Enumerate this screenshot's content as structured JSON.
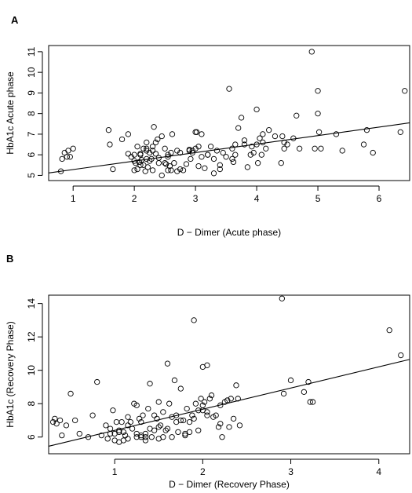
{
  "panels": [
    {
      "letter": "A"
    },
    {
      "letter": "B"
    }
  ],
  "chart_data": [
    {
      "type": "scatter",
      "title": "",
      "xlabel": "D − Dimer (Acute phase)",
      "ylabel": "HbA1c Acute phase",
      "xlim": [
        0.6,
        6.5
      ],
      "ylim": [
        4.75,
        11.3
      ],
      "xticks": [
        1,
        2,
        3,
        4,
        5,
        6
      ],
      "yticks": [
        5,
        6,
        7,
        8,
        9,
        10,
        11
      ],
      "grid": false,
      "fit_line": {
        "x": [
          0.6,
          6.5
        ],
        "y": [
          5.12,
          7.55
        ]
      },
      "x": [
        0.8,
        0.82,
        0.86,
        0.9,
        0.92,
        0.95,
        1.0,
        1.58,
        1.6,
        1.65,
        1.8,
        1.9,
        1.95,
        2.0,
        2.02,
        2.05,
        2.08,
        2.1,
        2.12,
        2.15,
        2.18,
        2.2,
        2.22,
        2.25,
        2.28,
        2.3,
        2.05,
        2.1,
        2.15,
        2.2,
        2.25,
        2.3,
        2.32,
        2.35,
        2.38,
        2.4,
        2.45,
        2.5,
        2.52,
        2.55,
        2.58,
        2.6,
        2.62,
        2.65,
        2.7,
        2.75,
        2.8,
        2.85,
        2.9,
        2.92,
        2.95,
        3.0,
        3.02,
        3.05,
        2.5,
        2.55,
        2.6,
        3.1,
        3.15,
        3.2,
        3.25,
        3.3,
        3.35,
        3.4,
        3.45,
        3.5,
        3.55,
        3.6,
        3.62,
        3.65,
        3.7,
        3.75,
        3.8,
        3.85,
        3.9,
        3.92,
        3.95,
        4.0,
        4.02,
        4.05,
        4.08,
        4.1,
        4.15,
        4.2,
        4.4,
        4.42,
        4.45,
        4.5,
        4.6,
        4.65,
        4.7,
        4.9,
        4.95,
        5.0,
        5.0,
        5.02,
        5.05,
        5.3,
        5.4,
        5.75,
        5.8,
        5.9,
        6.35,
        6.42,
        2.3,
        2.45,
        2.7,
        2.9,
        3.0,
        3.1,
        3.2,
        3.6,
        3.65,
        3.8,
        4.0,
        4.1,
        4.3,
        4.45,
        2.0,
        2.1,
        2.2,
        2.4,
        2.55,
        2.75,
        2.95,
        3.05,
        3.3,
        3.4,
        1.9,
        2.0,
        2.2,
        2.35
      ],
      "y": [
        5.2,
        5.8,
        6.1,
        5.9,
        6.2,
        5.9,
        6.3,
        7.2,
        6.5,
        5.3,
        6.75,
        6.05,
        5.9,
        5.25,
        5.6,
        5.3,
        5.65,
        6.05,
        5.75,
        6.3,
        5.2,
        6.6,
        5.4,
        6.1,
        5.8,
        6.2,
        6.4,
        6.0,
        5.5,
        6.3,
        5.7,
        5.25,
        7.35,
        6.05,
        6.75,
        5.85,
        6.9,
        6.3,
        5.55,
        5.25,
        5.45,
        6.1,
        7.0,
        5.6,
        6.2,
        5.3,
        5.25,
        5.55,
        6.25,
        5.8,
        6.1,
        6.3,
        7.1,
        5.45,
        5.6,
        6.0,
        5.25,
        7.0,
        5.35,
        6.0,
        6.4,
        5.8,
        6.2,
        5.5,
        6.1,
        5.9,
        9.2,
        6.3,
        5.65,
        6.0,
        7.3,
        7.8,
        6.5,
        5.4,
        6.0,
        6.4,
        6.1,
        6.5,
        5.6,
        6.8,
        6.0,
        7.0,
        6.3,
        7.2,
        5.6,
        6.9,
        6.3,
        6.5,
        6.8,
        7.9,
        6.3,
        11.0,
        6.3,
        8.0,
        9.1,
        7.1,
        6.3,
        7.0,
        6.2,
        6.5,
        7.2,
        6.1,
        7.1,
        9.1,
        6.4,
        5.0,
        5.2,
        6.2,
        7.1,
        5.9,
        6.0,
        5.8,
        6.5,
        6.7,
        8.2,
        6.6,
        6.9,
        6.6,
        5.7,
        5.5,
        6.2,
        5.6,
        5.9,
        6.1,
        6.2,
        6.4,
        5.1,
        5.3,
        7.0,
        6.0,
        5.8,
        6.6
      ],
      "marker": "open-circle"
    },
    {
      "type": "scatter",
      "title": "",
      "xlabel": "D − Dimer (Recovery Phase)",
      "ylabel": "HbA1c (Recovery Phase)",
      "xlim": [
        0.25,
        4.35
      ],
      "ylim": [
        5.0,
        14.5
      ],
      "xticks": [
        1,
        2,
        3,
        4
      ],
      "yticks": [
        6,
        8,
        10,
        12,
        14
      ],
      "grid": false,
      "fit_line": {
        "x": [
          0.25,
          4.35
        ],
        "y": [
          5.45,
          10.65
        ]
      },
      "x": [
        0.3,
        0.32,
        0.34,
        0.38,
        0.4,
        0.45,
        0.5,
        0.55,
        0.6,
        0.7,
        0.75,
        0.8,
        0.85,
        0.9,
        0.92,
        0.95,
        0.98,
        1.0,
        1.0,
        1.02,
        1.05,
        1.05,
        1.08,
        1.1,
        1.12,
        1.15,
        1.15,
        1.18,
        1.2,
        1.22,
        1.25,
        1.25,
        1.28,
        1.3,
        1.3,
        1.32,
        1.35,
        1.35,
        1.38,
        1.4,
        1.4,
        1.42,
        1.45,
        1.45,
        1.48,
        1.5,
        1.5,
        1.52,
        1.55,
        1.55,
        1.58,
        1.6,
        1.62,
        1.65,
        1.65,
        1.68,
        1.7,
        1.72,
        1.75,
        1.78,
        1.8,
        1.8,
        1.82,
        1.85,
        1.88,
        1.9,
        1.92,
        1.95,
        1.98,
        2.0,
        2.0,
        2.02,
        2.05,
        2.05,
        2.08,
        2.1,
        2.12,
        2.15,
        2.18,
        2.2,
        2.22,
        2.25,
        2.28,
        2.3,
        2.32,
        2.35,
        2.38,
        2.4,
        2.42,
        2.9,
        2.92,
        3.0,
        3.15,
        3.2,
        3.22,
        3.25,
        4.12,
        4.25,
        1.1,
        1.3,
        1.5,
        1.7,
        1.9,
        2.0,
        2.2,
        1.35,
        1.25,
        1.15,
        1.05,
        1.6,
        1.75,
        1.85,
        1.95,
        2.05,
        0.95
      ],
      "y": [
        6.9,
        7.1,
        6.8,
        7.0,
        6.1,
        6.7,
        8.6,
        7.0,
        6.2,
        6.0,
        7.3,
        9.3,
        6.1,
        6.7,
        5.9,
        6.5,
        7.6,
        5.8,
        6.2,
        6.9,
        5.7,
        6.3,
        6.9,
        5.8,
        6.1,
        7.2,
        5.9,
        6.9,
        6.5,
        8.0,
        6.2,
        7.9,
        7.1,
        6.0,
        6.9,
        7.3,
        6.2,
        6.0,
        7.7,
        6.5,
        9.2,
        6.0,
        6.4,
        7.3,
        7.1,
        5.9,
        8.1,
        6.7,
        7.5,
        6.0,
        6.4,
        10.4,
        8.0,
        7.2,
        6.0,
        9.4,
        7.3,
        6.3,
        8.9,
        7.0,
        6.1,
        6.2,
        7.7,
        6.3,
        7.3,
        13.0,
        8.0,
        7.6,
        8.3,
        7.9,
        10.2,
        8.1,
        7.3,
        10.3,
        8.3,
        8.5,
        7.2,
        7.3,
        6.6,
        6.8,
        6.0,
        8.1,
        8.2,
        6.6,
        8.3,
        7.1,
        9.1,
        8.3,
        6.7,
        14.3,
        8.6,
        9.4,
        8.7,
        9.3,
        8.1,
        8.1,
        12.4,
        10.9,
        6.3,
        6.1,
        6.6,
        6.9,
        7.1,
        7.6,
        7.9,
        5.8,
        6.0,
        6.7,
        6.4,
        6.5,
        7.0,
        6.9,
        6.4,
        7.5,
        6.2
      ],
      "marker": "open-circle"
    }
  ]
}
